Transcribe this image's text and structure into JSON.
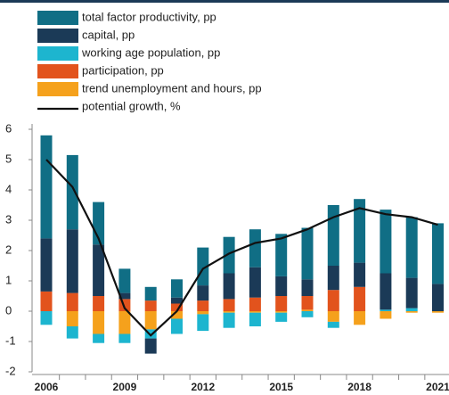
{
  "chart_data": {
    "type": "bar",
    "categories": [
      "2006",
      null,
      null,
      "2009",
      null,
      null,
      "2012",
      null,
      null,
      "2015",
      null,
      null,
      "2018",
      null,
      null,
      "2021"
    ],
    "series": [
      {
        "name": "total factor productivity, pp",
        "color": "#106e85",
        "values": [
          3.4,
          2.45,
          1.4,
          0.8,
          0.45,
          0.6,
          1.25,
          1.2,
          1.25,
          1.4,
          1.7,
          2.0,
          2.1,
          2.1,
          2.0,
          2.0
        ]
      },
      {
        "name": "capital, pp",
        "color": "#1b3a57",
        "values": [
          1.75,
          2.1,
          1.7,
          0.2,
          -0.5,
          0.2,
          0.5,
          0.85,
          1.0,
          0.65,
          0.55,
          0.8,
          0.8,
          1.2,
          1.0,
          0.9
        ]
      },
      {
        "name": "working age population, pp",
        "color": "#1db5cf",
        "values": [
          -0.45,
          -0.4,
          -0.3,
          -0.3,
          -0.3,
          -0.5,
          -0.55,
          -0.5,
          -0.45,
          -0.3,
          -0.2,
          -0.2,
          0,
          0.05,
          0.1,
          0
        ]
      },
      {
        "name": "participation, pp",
        "color": "#e2531d",
        "values": [
          0.65,
          0.6,
          0.5,
          0.4,
          0.35,
          0.25,
          0.35,
          0.4,
          0.45,
          0.5,
          0.45,
          0.7,
          0.8,
          0,
          0,
          0
        ]
      },
      {
        "name": "trend unemployment and hours, pp",
        "color": "#f5a11c",
        "values": [
          0,
          -0.5,
          -0.75,
          -0.75,
          -0.6,
          -0.25,
          -0.1,
          -0.05,
          -0.05,
          -0.05,
          0.05,
          -0.35,
          -0.45,
          -0.25,
          -0.05,
          -0.05
        ]
      },
      {
        "name": "potential growth, %",
        "color": "#111111",
        "type": "line",
        "values": [
          5.0,
          4.1,
          2.4,
          0.1,
          -0.8,
          0,
          1.4,
          1.9,
          2.25,
          2.4,
          2.7,
          3.1,
          3.4,
          3.2,
          3.1,
          2.85
        ]
      }
    ],
    "ylim": [
      -2,
      6
    ],
    "yticks": [
      -2,
      -1,
      0,
      1,
      2,
      3,
      4,
      5,
      6
    ]
  }
}
